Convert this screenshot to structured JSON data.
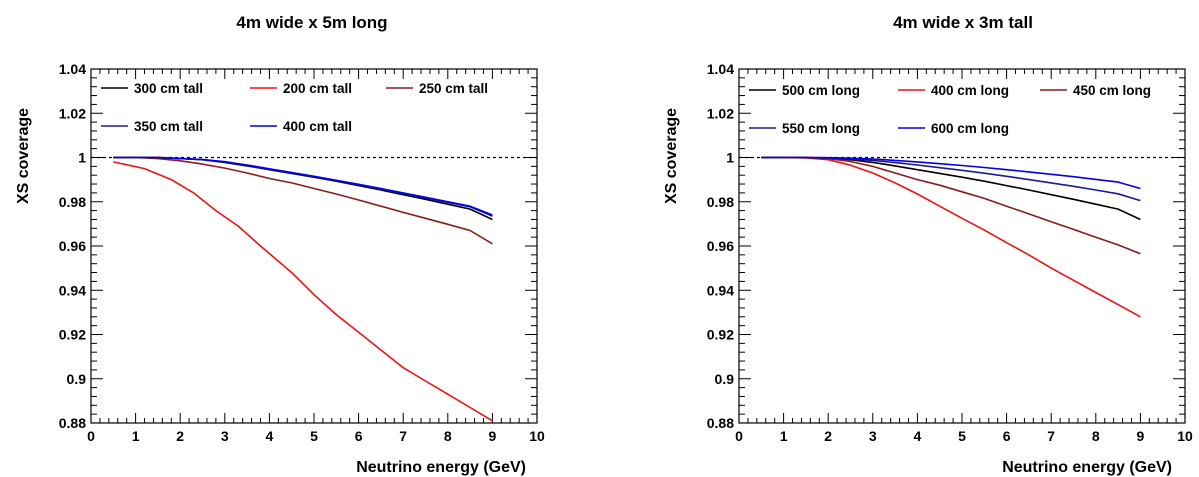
{
  "chart_data": [
    {
      "type": "line",
      "title": "4m wide x 5m long",
      "xlabel": "Neutrino energy (GeV)",
      "ylabel": "XS coverage",
      "xlim": [
        0,
        10
      ],
      "ylim": [
        0.88,
        1.04
      ],
      "xticks": [
        "0",
        "1",
        "2",
        "3",
        "4",
        "5",
        "6",
        "7",
        "8",
        "9",
        "10"
      ],
      "yticks": [
        "0.88",
        "0.9",
        "0.92",
        "0.94",
        "0.96",
        "0.98",
        "1",
        "1.02",
        "1.04"
      ],
      "reference_line": 1.0,
      "grid": false,
      "legend": "top-left, inside plot",
      "series": [
        {
          "name": "300 cm tall",
          "color": "#000000",
          "x": [
            0.5,
            1,
            1.5,
            2,
            2.5,
            3,
            3.5,
            4,
            4.5,
            5,
            5.5,
            6,
            6.5,
            7,
            7.5,
            8,
            8.5,
            9
          ],
          "y": [
            1.0,
            1.0,
            1.0,
            0.9995,
            0.999,
            0.9978,
            0.9962,
            0.9945,
            0.9928,
            0.9911,
            0.9893,
            0.9873,
            0.9853,
            0.9832,
            0.9811,
            0.9789,
            0.9767,
            0.972
          ]
        },
        {
          "name": "200 cm tall",
          "color": "#ee1111",
          "x": [
            0.5,
            1.2,
            1.8,
            2.3,
            2.8,
            3.3,
            3.8,
            4.5,
            5.0,
            5.5,
            6.0,
            6.5,
            7.0,
            7.5,
            8.0,
            8.5,
            9.0
          ],
          "y": [
            0.998,
            0.995,
            0.99,
            0.984,
            0.976,
            0.969,
            0.96,
            0.948,
            0.938,
            0.929,
            0.921,
            0.913,
            0.905,
            0.899,
            0.893,
            0.887,
            0.881
          ]
        },
        {
          "name": "250 cm tall",
          "color": "#8b1a1a",
          "x": [
            0.5,
            1,
            1.5,
            2,
            2.5,
            3,
            3.5,
            4,
            4.5,
            5,
            5.5,
            6,
            6.5,
            7,
            7.5,
            8,
            8.5,
            9
          ],
          "y": [
            1.0,
            1.0,
            0.9995,
            0.9985,
            0.997,
            0.9952,
            0.993,
            0.9905,
            0.9885,
            0.986,
            0.9835,
            0.9808,
            0.978,
            0.9752,
            0.9725,
            0.9698,
            0.967,
            0.961
          ]
        },
        {
          "name": "350 cm tall",
          "color": "#1a1a99",
          "x": [
            0.5,
            1,
            1.5,
            2,
            2.5,
            3,
            3.5,
            4,
            4.5,
            5,
            5.5,
            6,
            6.5,
            7,
            7.5,
            8,
            8.5,
            9
          ],
          "y": [
            1.0,
            1.0,
            1.0,
            0.9995,
            0.999,
            0.998,
            0.9964,
            0.9947,
            0.993,
            0.9913,
            0.9895,
            0.9876,
            0.9857,
            0.9837,
            0.9817,
            0.9797,
            0.9777,
            0.9735
          ]
        },
        {
          "name": "400 cm tall",
          "color": "#0000ee",
          "x": [
            0.5,
            1,
            1.5,
            2,
            2.5,
            3,
            3.5,
            4,
            4.5,
            5,
            5.5,
            6,
            6.5,
            7,
            7.5,
            8,
            8.5,
            9
          ],
          "y": [
            1.0,
            1.0,
            1.0,
            0.9996,
            0.9991,
            0.9981,
            0.9966,
            0.9949,
            0.9932,
            0.9915,
            0.9897,
            0.9879,
            0.986,
            0.984,
            0.982,
            0.98,
            0.978,
            0.974
          ]
        }
      ]
    },
    {
      "type": "line",
      "title": "4m wide x 3m tall",
      "xlabel": "Neutrino energy (GeV)",
      "ylabel": "XS coverage",
      "xlim": [
        0,
        10
      ],
      "ylim": [
        0.88,
        1.04
      ],
      "xticks": [
        "0",
        "1",
        "2",
        "3",
        "4",
        "5",
        "6",
        "7",
        "8",
        "9",
        "10"
      ],
      "yticks": [
        "0.88",
        "0.9",
        "0.92",
        "0.94",
        "0.96",
        "0.98",
        "1",
        "1.02",
        "1.04"
      ],
      "reference_line": 1.0,
      "grid": false,
      "legend": "top-left, inside plot",
      "series": [
        {
          "name": "500 cm long",
          "color": "#000000",
          "x": [
            0.5,
            1,
            1.5,
            2,
            2.5,
            3,
            3.5,
            4,
            4.5,
            5,
            5.5,
            6,
            6.5,
            7,
            7.5,
            8,
            8.5,
            9
          ],
          "y": [
            1.0,
            1.0,
            1.0,
            0.9995,
            0.999,
            0.9978,
            0.9962,
            0.9945,
            0.9928,
            0.9911,
            0.9893,
            0.9873,
            0.9853,
            0.9832,
            0.9811,
            0.9789,
            0.9767,
            0.972
          ]
        },
        {
          "name": "400 cm long",
          "color": "#ee1111",
          "x": [
            0.5,
            1,
            1.5,
            2,
            2.5,
            3,
            3.5,
            4,
            4.5,
            5,
            5.5,
            6,
            6.5,
            7,
            7.5,
            8,
            8.5,
            9
          ],
          "y": [
            1.0,
            1.0,
            0.9998,
            0.999,
            0.9965,
            0.993,
            0.9885,
            0.9835,
            0.978,
            0.9725,
            0.9672,
            0.9615,
            0.956,
            0.95,
            0.9445,
            0.939,
            0.9335,
            0.928
          ]
        },
        {
          "name": "450 cm long",
          "color": "#8b1a1a",
          "x": [
            0.5,
            1,
            1.5,
            2,
            2.5,
            3,
            3.5,
            4,
            4.5,
            5,
            5.5,
            6,
            6.5,
            7,
            7.5,
            8,
            8.5,
            9
          ],
          "y": [
            1.0,
            1.0,
            1.0,
            0.9995,
            0.9982,
            0.996,
            0.993,
            0.99,
            0.9875,
            0.9845,
            0.9815,
            0.978,
            0.9745,
            0.971,
            0.9675,
            0.964,
            0.9605,
            0.9565
          ]
        },
        {
          "name": "550 cm long",
          "color": "#1a1a99",
          "x": [
            0.5,
            1,
            1.5,
            2,
            2.5,
            3,
            3.5,
            4,
            4.5,
            5,
            5.5,
            6,
            6.5,
            7,
            7.5,
            8,
            8.5,
            9
          ],
          "y": [
            1.0,
            1.0,
            1.0,
            0.9998,
            0.9994,
            0.9987,
            0.9977,
            0.9966,
            0.9954,
            0.9942,
            0.9929,
            0.9915,
            0.99,
            0.9885,
            0.987,
            0.9853,
            0.9836,
            0.9805
          ]
        },
        {
          "name": "600 cm long",
          "color": "#0000ee",
          "x": [
            0.5,
            1,
            1.5,
            2,
            2.5,
            3,
            3.5,
            4,
            4.5,
            5,
            5.5,
            6,
            6.5,
            7,
            7.5,
            8,
            8.5,
            9
          ],
          "y": [
            1.0,
            1.0,
            1.0,
            0.9999,
            0.9997,
            0.9993,
            0.9987,
            0.998,
            0.9972,
            0.9964,
            0.9955,
            0.9945,
            0.9935,
            0.9924,
            0.9913,
            0.9901,
            0.9889,
            0.986
          ]
        }
      ]
    }
  ]
}
